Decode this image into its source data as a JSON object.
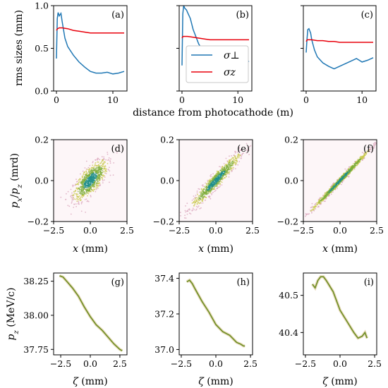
{
  "colors": {
    "sigma_perp": "#1f77b4",
    "sigma_z": "#e8000b",
    "phase": "#6b8e23",
    "phase_edge": "#d8a0b8"
  },
  "chart_data": [
    {
      "panel": "(a)",
      "type": "line",
      "xlim": [
        -0.5,
        12.5
      ],
      "ylim": [
        0,
        1
      ],
      "ylabel": "rms sizes (mm)",
      "xticks": [
        "0",
        "10"
      ],
      "yticks": [
        "0.0",
        "0.5",
        "1.0"
      ],
      "series": [
        {
          "key": "perp",
          "x": [
            0,
            0.15,
            0.3,
            0.5,
            0.8,
            1,
            1.5,
            2,
            3,
            4,
            5,
            6,
            7,
            8,
            9,
            10,
            11,
            12
          ],
          "y": [
            0.38,
            0.85,
            0.92,
            0.88,
            0.91,
            0.82,
            0.62,
            0.52,
            0.42,
            0.34,
            0.28,
            0.23,
            0.21,
            0.21,
            0.22,
            0.2,
            0.21,
            0.23
          ]
        },
        {
          "key": "z",
          "x": [
            0,
            0.2,
            0.5,
            1,
            2,
            3,
            4,
            5,
            6,
            8,
            10,
            12
          ],
          "y": [
            0.71,
            0.73,
            0.74,
            0.74,
            0.73,
            0.71,
            0.7,
            0.69,
            0.68,
            0.68,
            0.68,
            0.68
          ]
        }
      ]
    },
    {
      "panel": "(b)",
      "type": "line",
      "xlim": [
        -0.5,
        12.5
      ],
      "ylim": [
        0,
        1
      ],
      "xticks": [
        "0",
        "10"
      ],
      "series": [
        {
          "key": "perp",
          "x": [
            0,
            0.15,
            0.3,
            0.5,
            0.8,
            1,
            1.5,
            2,
            3,
            4,
            5,
            6,
            7,
            8,
            9,
            10,
            11,
            12
          ],
          "y": [
            0.3,
            0.9,
            1.0,
            0.97,
            0.95,
            0.92,
            0.85,
            0.72,
            0.55,
            0.45,
            0.38,
            0.33,
            0.3,
            0.25,
            0.27,
            0.29,
            0.32,
            0.35
          ]
        },
        {
          "key": "z",
          "x": [
            0,
            0.2,
            0.5,
            1,
            2,
            3,
            4,
            5,
            6,
            8,
            10,
            12
          ],
          "y": [
            0.62,
            0.64,
            0.64,
            0.64,
            0.63,
            0.62,
            0.61,
            0.6,
            0.6,
            0.6,
            0.6,
            0.6
          ]
        }
      ]
    },
    {
      "panel": "(c)",
      "type": "line",
      "xlim": [
        -0.5,
        12.5
      ],
      "ylim": [
        0,
        1
      ],
      "xticks": [
        "0",
        "10"
      ],
      "series": [
        {
          "key": "perp",
          "x": [
            0,
            0.15,
            0.3,
            0.5,
            0.8,
            1,
            1.5,
            2,
            3,
            4,
            5,
            6,
            7,
            8,
            9,
            10,
            11,
            12
          ],
          "y": [
            0.45,
            0.6,
            0.72,
            0.73,
            0.68,
            0.6,
            0.48,
            0.4,
            0.33,
            0.29,
            0.26,
            0.29,
            0.32,
            0.35,
            0.38,
            0.34,
            0.36,
            0.39
          ]
        },
        {
          "key": "z",
          "x": [
            0,
            0.2,
            0.5,
            1,
            2,
            3,
            4,
            5,
            6,
            8,
            10,
            12
          ],
          "y": [
            0.58,
            0.6,
            0.6,
            0.6,
            0.59,
            0.59,
            0.58,
            0.58,
            0.57,
            0.57,
            0.57,
            0.57
          ]
        }
      ]
    },
    {
      "panel": "(d)",
      "type": "scatter",
      "xlim": [
        -2.5,
        2.5
      ],
      "ylim": [
        -0.2,
        0.2
      ],
      "xlabel": "x (mm)",
      "ylabel": "px/pz (mrd)",
      "xticks": [
        "−2.5",
        "0.0",
        "2.5"
      ],
      "yticks": [
        "−0.2",
        "0.0",
        "0.2"
      ],
      "slope": 0.06,
      "spread_x": 0.36,
      "spread_y": 0.024,
      "n": 900
    },
    {
      "panel": "(e)",
      "type": "scatter",
      "xlim": [
        -2.5,
        2.5
      ],
      "ylim": [
        -0.2,
        0.2
      ],
      "xlabel": "x (mm)",
      "xticks": [
        "−2.5",
        "0.0",
        "2.5"
      ],
      "yticks": [
        "−0.2",
        "0.0",
        "0.2"
      ],
      "slope": 0.075,
      "spread_x": 0.5,
      "spread_y": 0.014,
      "n": 900
    },
    {
      "panel": "(f)",
      "type": "scatter",
      "xlim": [
        -2.5,
        2.5
      ],
      "ylim": [
        -0.2,
        0.2
      ],
      "xlabel": "x (mm)",
      "xticks": [
        "−2.5",
        "0.0",
        "2.5"
      ],
      "yticks": [
        "−0.2",
        "0.0",
        "0.2"
      ],
      "slope": 0.075,
      "spread_x": 0.6,
      "spread_y": 0.006,
      "n": 900
    },
    {
      "panel": "(g)",
      "type": "line",
      "xlim": [
        -3.1,
        3.1
      ],
      "ylim": [
        37.71,
        38.31
      ],
      "xlabel": "ζ (mm)",
      "ylabel": "pz (MeV/c)",
      "xticks": [
        "−2.5",
        "0.0",
        "2.5"
      ],
      "yticks": [
        "37.75",
        "38.00",
        "38.25"
      ],
      "x": [
        -2.6,
        -2.3,
        -2.0,
        -1.5,
        -1.0,
        -0.5,
        0.0,
        0.5,
        1.0,
        1.5,
        2.0,
        2.5,
        2.7
      ],
      "y": [
        38.29,
        38.28,
        38.25,
        38.2,
        38.14,
        38.06,
        37.99,
        37.93,
        37.89,
        37.84,
        37.79,
        37.75,
        37.74
      ]
    },
    {
      "panel": "(h)",
      "type": "line",
      "xlim": [
        -2.65,
        2.65
      ],
      "ylim": [
        36.97,
        37.43
      ],
      "xlabel": "ζ (mm)",
      "xticks": [
        "−2.5",
        "0.0",
        "2.5"
      ],
      "yticks": [
        "37.0",
        "37.2",
        "37.4"
      ],
      "x": [
        -2.1,
        -1.9,
        -1.7,
        -1.5,
        -1.0,
        -0.5,
        0.0,
        0.5,
        1.0,
        1.5,
        1.8,
        2.0,
        2.1
      ],
      "y": [
        37.38,
        37.39,
        37.37,
        37.34,
        37.27,
        37.21,
        37.14,
        37.1,
        37.08,
        37.04,
        37.03,
        37.02,
        37.02
      ]
    },
    {
      "panel": "(i)",
      "type": "line",
      "xlim": [
        -2.65,
        2.65
      ],
      "ylim": [
        40.34,
        40.56
      ],
      "xlabel": "ζ (mm)",
      "xticks": [
        "−2.5",
        "0.0",
        "2.5"
      ],
      "yticks": [
        "40.4",
        "40.5"
      ],
      "x": [
        -2.0,
        -1.8,
        -1.6,
        -1.4,
        -1.2,
        -1.0,
        -0.5,
        0.0,
        0.5,
        1.0,
        1.3,
        1.6,
        1.8,
        1.95
      ],
      "y": [
        40.53,
        40.52,
        40.54,
        40.55,
        40.55,
        40.54,
        40.51,
        40.46,
        40.43,
        40.4,
        40.385,
        40.39,
        40.4,
        40.385
      ]
    }
  ],
  "labels": {
    "shared_xlabel_top": "distance from photocathode (m)",
    "legend_perp": "σ⊥",
    "legend_z": "σz"
  }
}
